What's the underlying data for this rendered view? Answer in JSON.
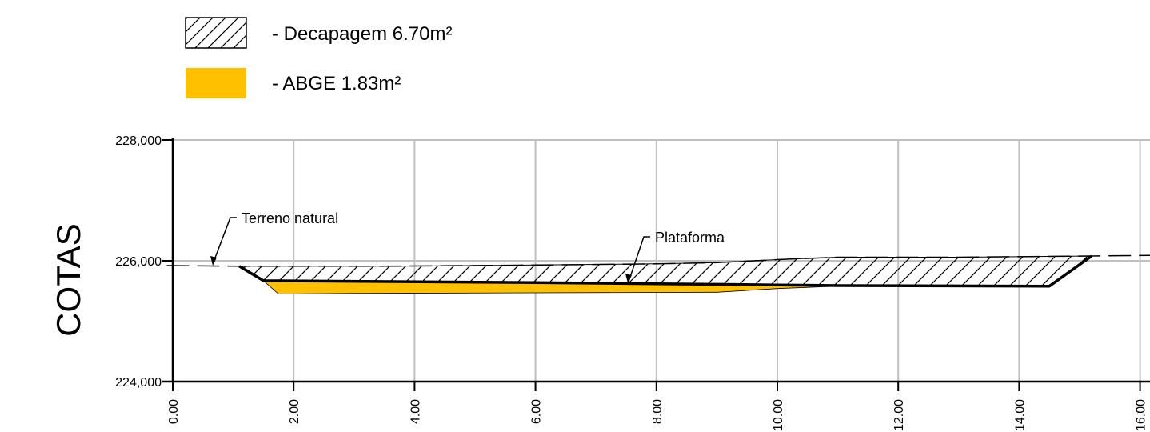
{
  "colors": {
    "abge_fill": "#ffc000",
    "grid": "#c0c0c0",
    "hatch": "#000000"
  },
  "legend": {
    "items": [
      {
        "label": "- Decapagem 6.70m²",
        "swatch": "hatch"
      },
      {
        "label": "-  ABGE 1.83m²",
        "swatch": "abge_fill"
      }
    ]
  },
  "labels": {
    "y_axis_title": "COTAS",
    "terreno": "Terreno natural",
    "plataforma": "Plataforma"
  },
  "chart_data": {
    "type": "cross-section",
    "xlabel": "",
    "ylabel": "COTAS",
    "xlim": [
      0,
      16
    ],
    "ylim": [
      224,
      228
    ],
    "x_ticks": [
      "0.00",
      "2.00",
      "4.00",
      "6.00",
      "8.00",
      "10.00",
      "12.00",
      "14.00",
      "16.00"
    ],
    "y_ticks": [
      "224,000",
      "226,000",
      "228,000"
    ],
    "y_tick_values": [
      224,
      226,
      228
    ],
    "series": [
      {
        "name": "Terreno natural",
        "style": "dashed",
        "points": [
          [
            -0.1,
            225.92
          ],
          [
            1.1,
            225.91
          ],
          [
            3.5,
            225.91
          ],
          [
            6.0,
            225.93
          ],
          [
            8.0,
            225.95
          ],
          [
            9.0,
            225.97
          ],
          [
            10.0,
            226.02
          ],
          [
            11.0,
            226.06
          ],
          [
            13.0,
            226.06
          ],
          [
            15.2,
            226.08
          ],
          [
            16.2,
            226.09
          ]
        ]
      },
      {
        "name": "Plataforma",
        "style": "solid-thick",
        "points": [
          [
            1.1,
            225.91
          ],
          [
            1.5,
            225.67
          ],
          [
            6.0,
            225.64
          ],
          [
            8.0,
            225.62
          ],
          [
            9.0,
            225.61
          ],
          [
            10.0,
            225.6
          ],
          [
            11.0,
            225.59
          ],
          [
            14.5,
            225.58
          ],
          [
            15.2,
            226.08
          ]
        ]
      }
    ],
    "areas": [
      {
        "name": "Decapagem",
        "value": "6.70m²",
        "fill": "hatch",
        "points": [
          [
            1.1,
            225.91
          ],
          [
            3.5,
            225.91
          ],
          [
            6.0,
            225.93
          ],
          [
            8.0,
            225.95
          ],
          [
            9.0,
            225.97
          ],
          [
            10.0,
            226.02
          ],
          [
            11.0,
            226.06
          ],
          [
            13.0,
            226.06
          ],
          [
            15.2,
            226.08
          ],
          [
            14.5,
            225.58
          ],
          [
            11.0,
            225.59
          ],
          [
            10.0,
            225.6
          ],
          [
            9.0,
            225.61
          ],
          [
            8.0,
            225.62
          ],
          [
            6.0,
            225.64
          ],
          [
            1.5,
            225.67
          ]
        ]
      },
      {
        "name": "ABGE",
        "value": "1.83m²",
        "fill": "abge_fill",
        "points": [
          [
            1.5,
            225.67
          ],
          [
            6.0,
            225.64
          ],
          [
            8.0,
            225.62
          ],
          [
            9.0,
            225.61
          ],
          [
            10.0,
            225.6
          ],
          [
            11.0,
            225.59
          ],
          [
            14.5,
            225.58
          ],
          [
            11.0,
            225.58
          ],
          [
            10.0,
            225.54
          ],
          [
            9.0,
            225.48
          ],
          [
            6.0,
            225.47
          ],
          [
            3.0,
            225.46
          ],
          [
            1.75,
            225.45
          ]
        ]
      }
    ]
  }
}
